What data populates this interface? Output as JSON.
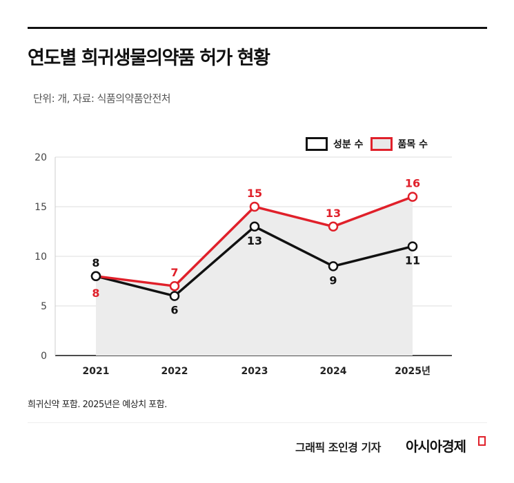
{
  "title": "연도별 희귀생물의약품 허가 현황",
  "subtitle": "단위: 개, 자료: 식품의약품안전처",
  "note": "희귀신약 포함. 2025년은 예상치 포함.",
  "credit": "그래픽  조인경 기자",
  "logo": "아시아경제",
  "colors": {
    "ingredient": "#111111",
    "product": "#e0202a",
    "area": "#ececec",
    "grid": "#dddddd"
  },
  "chart_data": {
    "type": "line",
    "categories": [
      "2021",
      "2022",
      "2023",
      "2024",
      "2025년"
    ],
    "ylim": [
      0,
      20
    ],
    "yticks": [
      0,
      5,
      10,
      15,
      20
    ],
    "grid": true,
    "legend_placement": "top-right",
    "series": [
      {
        "name": "성분 수",
        "values": [
          8,
          6,
          13,
          9,
          11
        ]
      },
      {
        "name": "품목 수",
        "values": [
          8,
          7,
          15,
          13,
          16
        ],
        "area": true
      }
    ]
  }
}
